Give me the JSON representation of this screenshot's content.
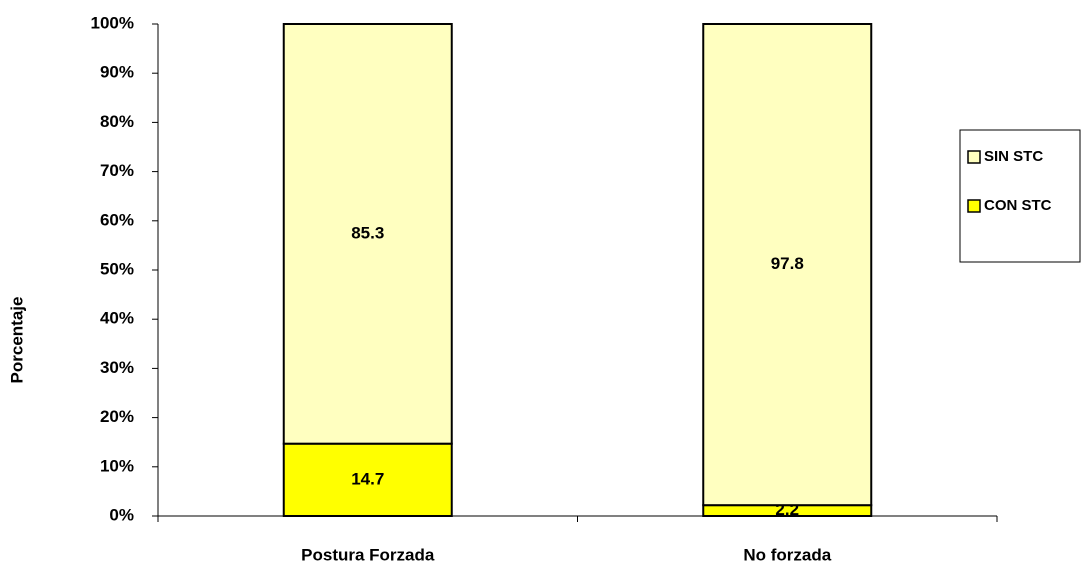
{
  "chart_data": {
    "type": "stacked_bar",
    "y_label": "Porcentaje",
    "categories": [
      "Postura Forzada",
      "No forzada"
    ],
    "series": [
      {
        "name": "CON STC",
        "color": "#ffff00",
        "values": [
          14.7,
          2.2
        ]
      },
      {
        "name": "SIN STC",
        "color": "#ffffc0",
        "values": [
          85.3,
          97.8
        ]
      }
    ],
    "ylim": [
      0,
      100
    ],
    "yticks": [
      {
        "value": 0,
        "label": "0%"
      },
      {
        "value": 10,
        "label": "10%"
      },
      {
        "value": 20,
        "label": "20%"
      },
      {
        "value": 30,
        "label": "30%"
      },
      {
        "value": 40,
        "label": "40%"
      },
      {
        "value": 50,
        "label": "50%"
      },
      {
        "value": 60,
        "label": "60%"
      },
      {
        "value": 70,
        "label": "70%"
      },
      {
        "value": 80,
        "label": "80%"
      },
      {
        "value": 90,
        "label": "90%"
      },
      {
        "value": 100,
        "label": "100%"
      }
    ],
    "legend": "right"
  }
}
